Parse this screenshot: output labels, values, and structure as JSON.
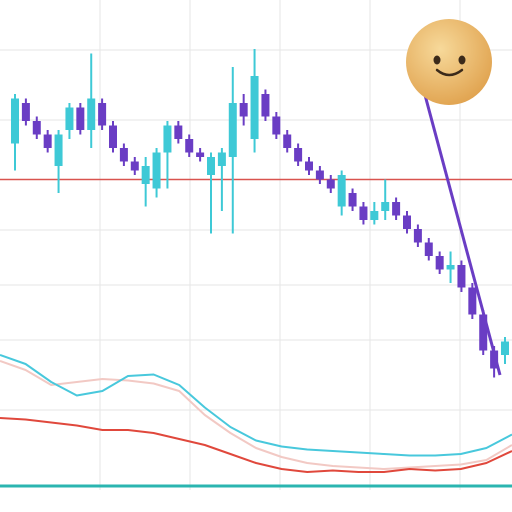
{
  "chart_data": [
    {
      "type": "candlestick",
      "open": [
        77,
        86,
        82,
        79,
        72,
        80,
        85,
        80,
        86,
        81,
        76,
        73,
        68,
        67,
        75,
        81,
        78,
        75,
        70,
        72,
        74,
        86,
        78,
        88,
        83,
        79,
        76,
        73,
        71,
        69,
        63,
        66,
        63,
        60,
        62,
        64,
        61,
        58,
        55,
        52,
        49,
        50,
        45,
        39,
        31,
        30
      ],
      "high": [
        88,
        87,
        83,
        80,
        80,
        86,
        86,
        97,
        87,
        82,
        77,
        74,
        74,
        76,
        82,
        82,
        79,
        76,
        75,
        76,
        94,
        88,
        98,
        89,
        84,
        80,
        77,
        74,
        72,
        70,
        71,
        67,
        64,
        64,
        69,
        65,
        62,
        59,
        56,
        53,
        53,
        51,
        46,
        40,
        32,
        34
      ],
      "low": [
        71,
        81,
        78,
        75,
        66,
        78,
        79,
        76,
        80,
        75,
        72,
        70,
        63,
        65,
        67,
        77,
        74,
        73,
        57,
        62,
        57,
        81,
        75,
        82,
        78,
        75,
        72,
        70,
        68,
        66,
        61,
        62,
        59,
        59,
        60,
        60,
        57,
        54,
        51,
        48,
        46,
        44,
        38,
        30,
        25,
        28
      ],
      "close": [
        87,
        82,
        79,
        76,
        79,
        85,
        80,
        87,
        81,
        76,
        73,
        71,
        72,
        75,
        81,
        78,
        75,
        74,
        74,
        75,
        86,
        83,
        92,
        83,
        79,
        76,
        73,
        71,
        69,
        67,
        70,
        63,
        60,
        62,
        64,
        61,
        58,
        55,
        52,
        49,
        50,
        45,
        39,
        31,
        27,
        33
      ],
      "up_color": "#3ec9d6",
      "down_color": "#6a3dc4",
      "ylim": [
        0,
        100
      ],
      "reference": {
        "value": 69,
        "color": "#d9534f"
      }
    },
    {
      "type": "line",
      "x": [
        0,
        1,
        2,
        3,
        4,
        5,
        6,
        7,
        8,
        9,
        10,
        11,
        12,
        13,
        14,
        15,
        16,
        17,
        18,
        19,
        20
      ],
      "xlim": [
        0,
        20
      ],
      "ylim": [
        0,
        100
      ],
      "series": [
        {
          "color": "#f2c9c4",
          "values": [
            86,
            80,
            70,
            72,
            74,
            73,
            71,
            66,
            50,
            38,
            28,
            22,
            18,
            16,
            15,
            14,
            15,
            16,
            17,
            20,
            30
          ]
        },
        {
          "color": "#48c8dc",
          "values": [
            90,
            84,
            72,
            63,
            66,
            76,
            77,
            70,
            55,
            42,
            33,
            29,
            27,
            26,
            25,
            24,
            23,
            23,
            24,
            28,
            37
          ]
        },
        {
          "color": "#e0483c",
          "values": [
            48,
            47,
            45,
            43,
            40,
            40,
            38,
            34,
            30,
            24,
            18,
            14,
            12,
            13,
            12,
            12,
            14,
            13,
            14,
            18,
            26
          ]
        }
      ]
    }
  ]
}
